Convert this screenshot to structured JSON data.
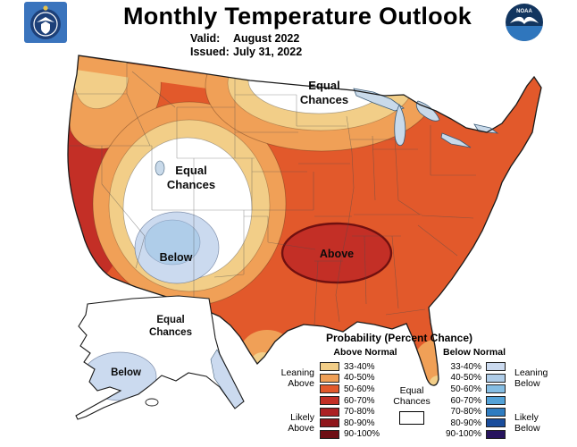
{
  "header": {
    "title": "Monthly Temperature Outlook",
    "valid_label": "Valid:",
    "valid_value": "August 2022",
    "issued_label": "Issued:",
    "issued_value": "July 31, 2022"
  },
  "logos": {
    "commerce_seal": "us-department-of-commerce-seal",
    "noaa": "noaa-logo",
    "noaa_text": "NOAA"
  },
  "map": {
    "labels": {
      "ec_midwest_line1": "Equal",
      "ec_midwest_line2": "Chances",
      "ec_west_line1": "Equal",
      "ec_west_line2": "Chances",
      "below_west": "Below",
      "above_south": "Above",
      "ak_ec_line1": "Equal",
      "ak_ec_line2": "Chances",
      "ak_below": "Below"
    }
  },
  "legend": {
    "title": "Probability (Percent Chance)",
    "above_header": "Above Normal",
    "below_header": "Below Normal",
    "equal_line1": "Equal",
    "equal_line2": "Chances",
    "side_labels": {
      "leaning_above_1": "Leaning",
      "leaning_above_2": "Above",
      "likely_above_1": "Likely",
      "likely_above_2": "Above",
      "leaning_below_1": "Leaning",
      "leaning_below_2": "Below",
      "likely_below_1": "Likely",
      "likely_below_2": "Below"
    },
    "rows": [
      {
        "pct": "33-40%",
        "above": "#F2CE88",
        "below": "#CBDAEF"
      },
      {
        "pct": "40-50%",
        "above": "#F0A057",
        "below": "#AFCDE9"
      },
      {
        "pct": "50-60%",
        "above": "#E2592B",
        "below": "#86BEE4"
      },
      {
        "pct": "60-70%",
        "above": "#C32F26",
        "below": "#53A2D8"
      },
      {
        "pct": "70-80%",
        "above": "#AB2023",
        "below": "#2F7CC0"
      },
      {
        "pct": "80-90%",
        "above": "#8F161B",
        "below": "#1A4D9C"
      },
      {
        "pct": "90-100%",
        "above": "#6E0E14",
        "below": "#27145E"
      }
    ]
  }
}
